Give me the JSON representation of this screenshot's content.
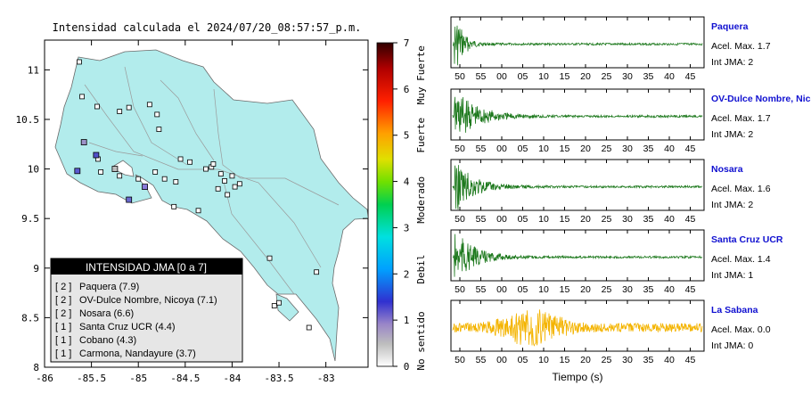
{
  "map": {
    "title": "Intensidad calculada el 2024/07/20_08:57:57_p.m.",
    "x_ticks": [
      "-86",
      "-85.5",
      "-85",
      "-84.5",
      "-84",
      "-83.5",
      "-83"
    ],
    "y_ticks": [
      "11",
      "10.5",
      "10",
      "9.5",
      "9",
      "8.5",
      "8"
    ],
    "xlim": [
      -86,
      -82.55
    ],
    "ylim": [
      8,
      11.3
    ]
  },
  "colorbar": {
    "ticks": [
      "0",
      "1",
      "2",
      "3",
      "4",
      "5",
      "6",
      "7"
    ],
    "labels": [
      "No sentido",
      "Debil",
      "Moderado",
      "Fuerte",
      "Muy Fuerte"
    ]
  },
  "legend": {
    "title": "INTENSIDAD JMA [0 a 7]",
    "entries": [
      {
        "jma": "[ 2 ]",
        "text": "Paquera (7.9)"
      },
      {
        "jma": "[ 2 ]",
        "text": "OV-Dulce Nombre, Nicoya (7.1)"
      },
      {
        "jma": "[ 2 ]",
        "text": "Nosara (6.6)"
      },
      {
        "jma": "[ 1 ]",
        "text": "Santa Cruz UCR (4.4)"
      },
      {
        "jma": "[ 1 ]",
        "text": "Cobano (4.3)"
      },
      {
        "jma": "[ 1 ]",
        "text": "Carmona, Nandayure (3.7)"
      }
    ]
  },
  "colors": {
    "land": "#b2ecec",
    "trace_green": "#1f7a1f",
    "trace_orange": "#f4b400",
    "station_name": "#1010d0"
  },
  "waveforms": {
    "x_ticks": [
      "50",
      "55",
      "00",
      "05",
      "10",
      "15",
      "20",
      "25",
      "30",
      "35",
      "40",
      "45"
    ],
    "xlabel": "Tiempo (s)",
    "stations": [
      {
        "name": "Paquera",
        "acel": "Acel. Max. 1.7",
        "jma": "Int JMA: 2",
        "color": "green",
        "decay": 0.12
      },
      {
        "name": "OV-Dulce Nombre, Nicoya",
        "acel": "Acel. Max. 1.7",
        "jma": "Int JMA: 2",
        "color": "green",
        "decay": 0.04
      },
      {
        "name": "Nosara",
        "acel": "Acel. Max. 1.6",
        "jma": "Int JMA: 2",
        "color": "green",
        "decay": 0.05
      },
      {
        "name": "Santa Cruz UCR",
        "acel": "Acel. Max. 1.4",
        "jma": "Int JMA: 1",
        "color": "green",
        "decay": 0.05
      },
      {
        "name": "La Sabana",
        "acel": "Acel. Max. 0.0",
        "jma": "Int JMA: 0",
        "color": "orange",
        "decay": 0
      }
    ]
  },
  "chart_data": {
    "type": "scatter",
    "title": "Intensidad calculada el 2024/07/20_08:57:57_p.m.",
    "xlim": [
      -86,
      -82.55
    ],
    "ylim": [
      8,
      11.3
    ],
    "series": [
      {
        "name": "Paquera",
        "values": [
          [
            -84.93,
            9.82
          ]
        ]
      },
      {
        "name": "OV-Dulce Nombre, Nicoya",
        "values": [
          [
            -85.45,
            10.14
          ]
        ]
      },
      {
        "name": "Nosara",
        "values": [
          [
            -85.65,
            9.98
          ]
        ]
      },
      {
        "name": "Santa Cruz UCR",
        "values": [
          [
            -85.58,
            10.27
          ]
        ]
      },
      {
        "name": "Cobano",
        "values": [
          [
            -85.1,
            9.69
          ]
        ]
      },
      {
        "name": "Carmona, Nandayure",
        "values": [
          [
            -85.25,
            10.0
          ]
        ]
      }
    ]
  }
}
